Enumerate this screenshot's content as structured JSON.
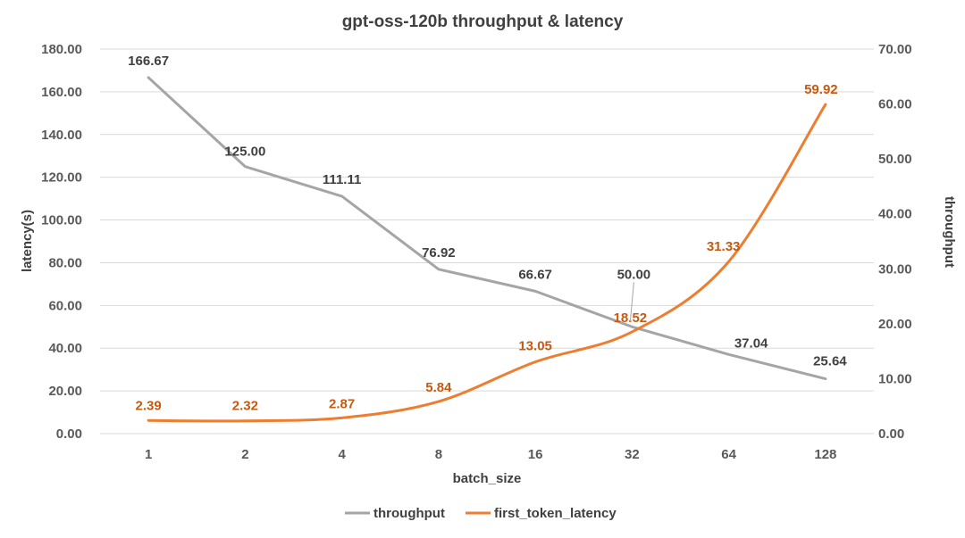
{
  "chart_data": {
    "type": "line",
    "title": "gpt-oss-120b throughput & latency",
    "xlabel": "batch_size",
    "ylabel_left": "latency(s)",
    "ylabel_right": "throughput",
    "categories": [
      "1",
      "2",
      "4",
      "8",
      "16",
      "32",
      "64",
      "128"
    ],
    "y_left": {
      "lim": [
        0,
        180
      ],
      "ticks": [
        "0.00",
        "20.00",
        "40.00",
        "60.00",
        "80.00",
        "100.00",
        "120.00",
        "140.00",
        "160.00",
        "180.00"
      ]
    },
    "y_right": {
      "lim": [
        0,
        70
      ],
      "ticks": [
        "0.00",
        "10.00",
        "20.00",
        "30.00",
        "40.00",
        "50.00",
        "60.00",
        "70.00"
      ]
    },
    "grid": true,
    "legend_position": "bottom",
    "series": [
      {
        "name": "throughput",
        "axis": "left",
        "color": "#a5a5a5",
        "values": [
          166.67,
          125.0,
          111.11,
          76.92,
          66.67,
          50.0,
          37.04,
          25.64
        ],
        "labels": [
          "166.67",
          "125.00",
          "111.11",
          "76.92",
          "66.67",
          "50.00",
          "37.04",
          "25.64"
        ],
        "label_color": "#404040"
      },
      {
        "name": "first_token_latency",
        "axis": "right",
        "color": "#ed7d31",
        "values": [
          2.39,
          2.32,
          2.87,
          5.84,
          13.05,
          18.52,
          31.33,
          59.92
        ],
        "labels": [
          "2.39",
          "2.32",
          "2.87",
          "5.84",
          "13.05",
          "18.52",
          "31.33",
          "59.92"
        ],
        "label_color": "#c55a11"
      }
    ]
  }
}
